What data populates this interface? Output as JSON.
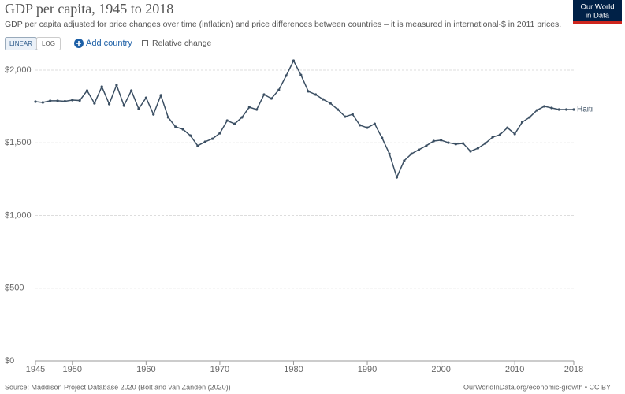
{
  "chart_data": {
    "type": "line",
    "title": "GDP per capita, 1945 to 2018",
    "subtitle": "GDP per capita adjusted for price changes over time (inflation) and price differences between countries – it is measured in international-$ in 2011 prices.",
    "x": [
      1945,
      1946,
      1947,
      1948,
      1949,
      1950,
      1951,
      1952,
      1953,
      1954,
      1955,
      1956,
      1957,
      1958,
      1959,
      1960,
      1961,
      1962,
      1963,
      1964,
      1965,
      1966,
      1967,
      1968,
      1969,
      1970,
      1971,
      1972,
      1973,
      1974,
      1975,
      1976,
      1977,
      1978,
      1979,
      1980,
      1981,
      1982,
      1983,
      1984,
      1985,
      1986,
      1987,
      1988,
      1989,
      1990,
      1991,
      1992,
      1993,
      1994,
      1995,
      1996,
      1997,
      1998,
      1999,
      2000,
      2001,
      2002,
      2003,
      2004,
      2005,
      2006,
      2007,
      2008,
      2009,
      2010,
      2011,
      2012,
      2013,
      2014,
      2015,
      2016,
      2017,
      2018
    ],
    "series": [
      {
        "name": "Haiti",
        "color": "#3b4f63",
        "values": [
          1783,
          1778,
          1789,
          1789,
          1786,
          1794,
          1791,
          1859,
          1772,
          1886,
          1767,
          1897,
          1756,
          1859,
          1734,
          1810,
          1696,
          1827,
          1675,
          1610,
          1593,
          1550,
          1480,
          1507,
          1528,
          1566,
          1653,
          1631,
          1675,
          1745,
          1729,
          1832,
          1805,
          1864,
          1962,
          2065,
          1967,
          1854,
          1832,
          1799,
          1772,
          1729,
          1680,
          1696,
          1621,
          1604,
          1631,
          1534,
          1425,
          1263,
          1377,
          1425,
          1453,
          1480,
          1512,
          1518,
          1501,
          1491,
          1496,
          1442,
          1463,
          1496,
          1539,
          1556,
          1604,
          1561,
          1642,
          1675,
          1724,
          1751,
          1740,
          1729,
          1729,
          1729
        ]
      }
    ],
    "xlim": [
      1945,
      2018
    ],
    "xticks": [
      1945,
      1950,
      1960,
      1970,
      1980,
      1990,
      2000,
      2010,
      2018
    ],
    "ylim": [
      0,
      2000
    ],
    "yticks": [
      {
        "value": 0,
        "label": "$0"
      },
      {
        "value": 500,
        "label": "$500"
      },
      {
        "value": 1000,
        "label": "$1,000"
      },
      {
        "value": 1500,
        "label": "$1,500"
      },
      {
        "value": 2000,
        "label": "$2,000"
      }
    ],
    "grid": true
  },
  "controls": {
    "linear": "LINEAR",
    "log": "LOG",
    "add_country": "Add country",
    "relative_change": "Relative change"
  },
  "logo": {
    "line1": "Our World",
    "line2": "in Data"
  },
  "footer": {
    "source": "Source: Maddison Project Database 2020 (Bolt and van Zanden (2020))",
    "url": "OurWorldInData.org/economic-growth • CC BY"
  }
}
